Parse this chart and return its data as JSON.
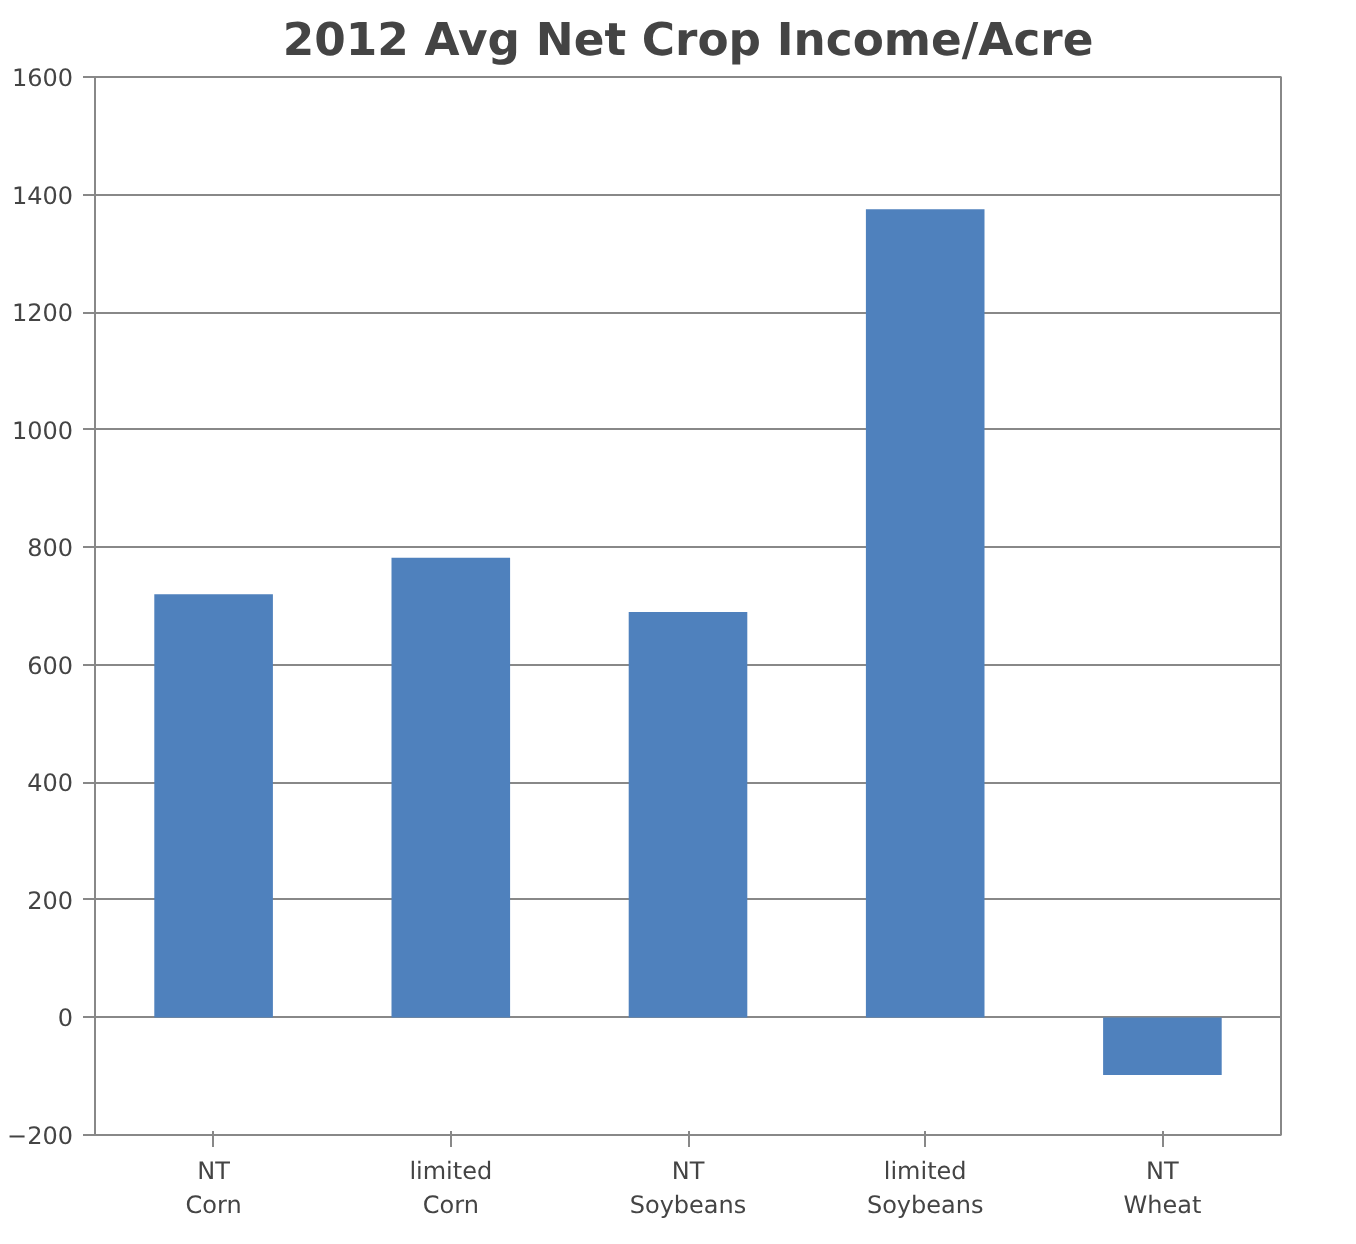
{
  "chart_data": {
    "type": "bar",
    "title": "2012 Avg Net Crop Income/Acre",
    "categories": [
      "NT\nCorn",
      "limited\nCorn",
      "NT\nSoybeans",
      "limited\nSoybeans",
      "NT\nWheat"
    ],
    "values": [
      720,
      782,
      690,
      1375,
      -98
    ],
    "color": "#4f81bd",
    "ylim": [
      -200,
      1600
    ],
    "yticks": [
      -200,
      0,
      200,
      400,
      600,
      800,
      1000,
      1200,
      1400,
      1600
    ],
    "grid": "y"
  }
}
